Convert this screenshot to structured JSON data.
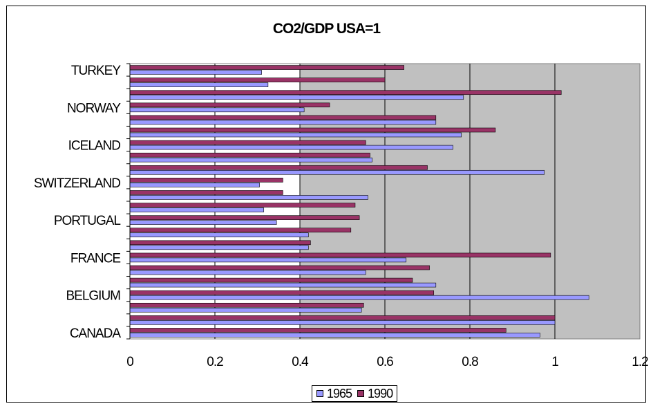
{
  "chart_data": {
    "type": "bar",
    "orientation": "horizontal",
    "title": "CO2/GDP USA=1",
    "xlabel": "",
    "ylabel": "",
    "xlim": [
      0,
      1.2
    ],
    "x_ticks": [
      "0",
      "0.2",
      "0.4",
      "0.6",
      "0.8",
      "1",
      "1.2"
    ],
    "grid": "vertical major gridlines",
    "plot_background": "#c0c0c0",
    "legend_position": "bottom",
    "categories": [
      "CANADA",
      "",
      "",
      "BELGIUM",
      "",
      "",
      "FRANCE",
      "",
      "",
      "PORTUGAL",
      "",
      "",
      "SWITZERLAND",
      "",
      "",
      "ICELAND",
      "",
      "",
      "NORWAY",
      "",
      "",
      "TURKEY"
    ],
    "series": [
      {
        "name": "1965",
        "color": "#9999ff",
        "values": [
          0.965,
          1.0,
          0.545,
          1.08,
          0.72,
          0.555,
          0.65,
          0.42,
          0.42,
          0.345,
          0.315,
          0.56,
          0.305,
          0.975,
          0.57,
          0.76,
          0.78,
          0.72,
          0.41,
          0.785,
          0.325,
          0.31
        ]
      },
      {
        "name": "1990",
        "color": "#993366",
        "values": [
          0.885,
          1.0,
          0.55,
          0.715,
          0.665,
          0.705,
          0.99,
          0.425,
          0.52,
          0.54,
          0.53,
          0.36,
          0.36,
          0.7,
          0.565,
          0.555,
          0.86,
          0.72,
          0.47,
          1.015,
          0.6,
          0.645
        ]
      }
    ]
  }
}
